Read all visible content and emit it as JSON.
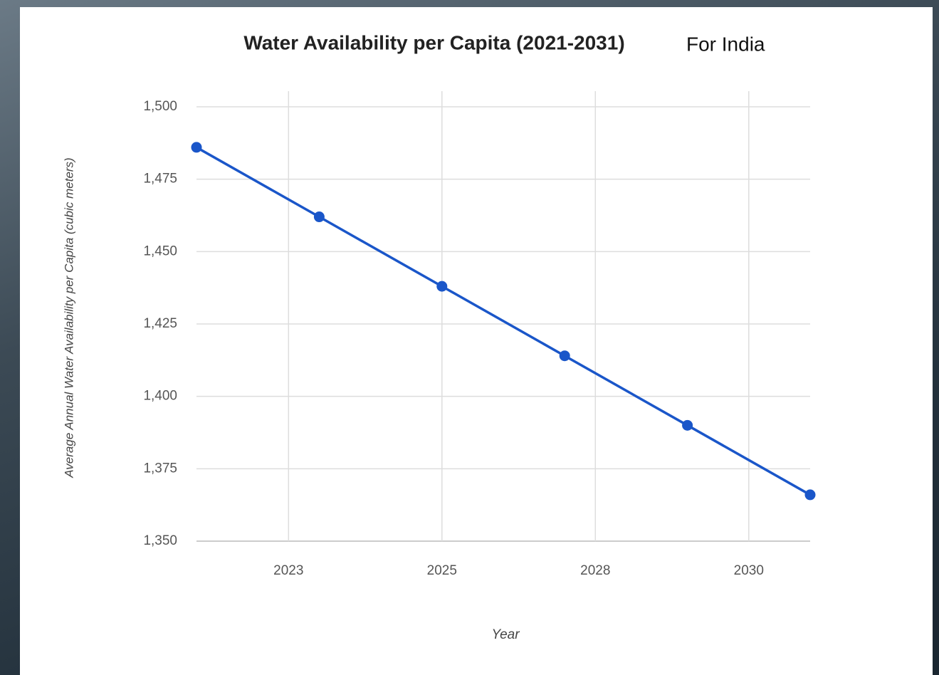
{
  "chart_data": {
    "type": "line",
    "title": "Water Availability per Capita (2021-2031)",
    "subtitle": "For India",
    "x_label": "Year",
    "y_label": "Average Annual Water Availability per Capita (cubic meters)",
    "x": [
      2021,
      2023,
      2025,
      2027,
      2029,
      2031
    ],
    "series": [
      {
        "name": "Water Availability",
        "color": "#1a56c9",
        "values": [
          1486,
          1462,
          1438,
          1414,
          1390,
          1366
        ]
      }
    ],
    "xlim": [
      2021,
      2031
    ],
    "xticks": [
      {
        "value": 2022.5,
        "label": "2023"
      },
      2025,
      {
        "value": 2027.5,
        "label": "2028"
      },
      2030
    ],
    "ylim": [
      1350,
      1500
    ],
    "yticks": [
      {
        "value": 1350,
        "label": "1,350"
      },
      {
        "value": 1375,
        "label": "1,375"
      },
      {
        "value": 1400,
        "label": "1,400"
      },
      {
        "value": 1425,
        "label": "1,425"
      },
      {
        "value": 1450,
        "label": "1,450"
      },
      {
        "value": 1475,
        "label": "1,475"
      },
      {
        "value": 1500,
        "label": "1,500"
      }
    ],
    "grid": true
  }
}
